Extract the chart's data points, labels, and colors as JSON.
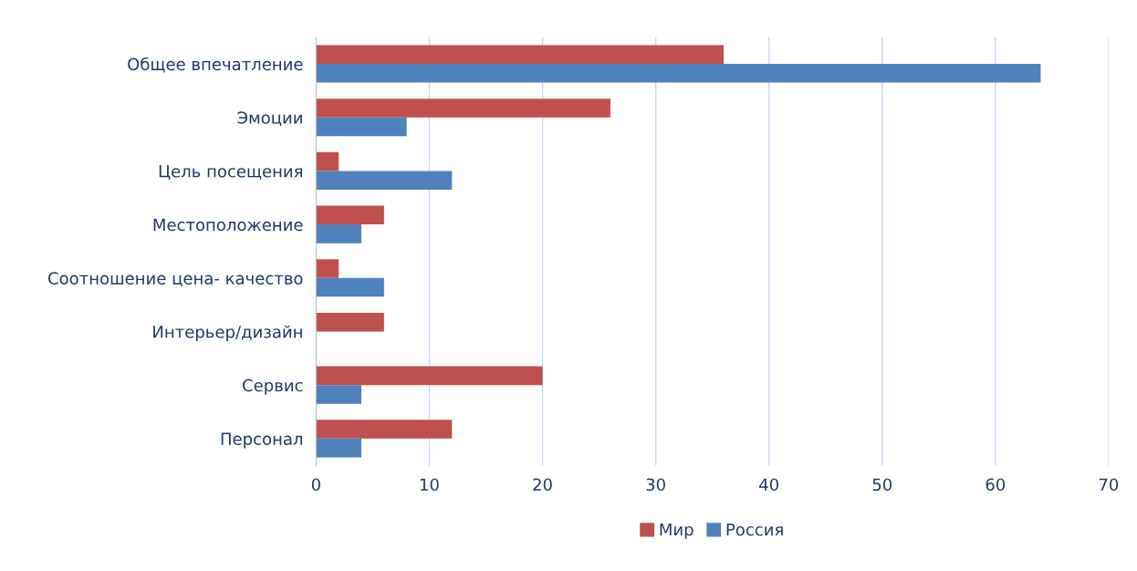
{
  "chart_data": {
    "type": "bar",
    "orientation": "horizontal",
    "categories": [
      "Общее впечатление",
      "Эмоции",
      "Цель посещения",
      "Местоположение",
      "Соотношение цена- качество",
      "Интерьер/дизайн",
      "Сервис",
      "Персонал"
    ],
    "series": [
      {
        "name": "Мир",
        "color": "#c0504d",
        "values": [
          36,
          26,
          2,
          6,
          2,
          6,
          20,
          12
        ]
      },
      {
        "name": "Россия",
        "color": "#4f81bd",
        "values": [
          64,
          8,
          12,
          4,
          6,
          0,
          4,
          4
        ]
      }
    ],
    "xlim": [
      0,
      70
    ],
    "xticks": [
      0,
      10,
      20,
      30,
      40,
      50,
      60,
      70
    ],
    "grid": "x",
    "legend": "bottom"
  }
}
